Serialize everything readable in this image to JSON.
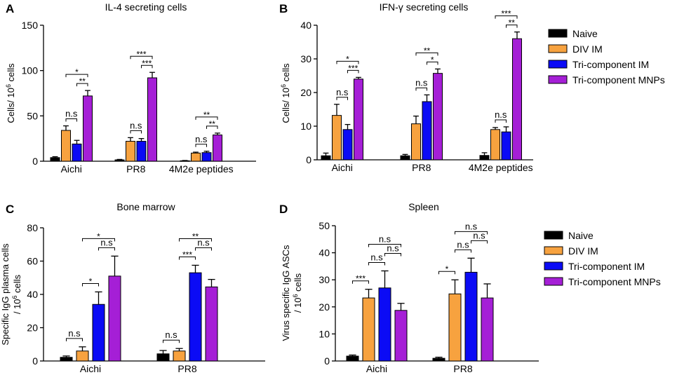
{
  "legend": {
    "items": [
      "Naive",
      "DIV IM",
      "Tri-component IM",
      "Tri-component MNPs"
    ],
    "colors": [
      "#000000",
      "#f7a23f",
      "#0b0bf5",
      "#a51fd6"
    ]
  },
  "chart_data": [
    {
      "panel": "A",
      "type": "bar",
      "title": "IL-4 secreting cells",
      "ylabel": "Cells/ 10^6 cells",
      "ylabel_prefix": "Cells/ 10",
      "ylabel_sup": "6",
      "ylabel_suffix": " cells",
      "ylim": [
        0,
        150
      ],
      "yticks": [
        0,
        50,
        100,
        150
      ],
      "categories": [
        "Aichi",
        "PR8",
        "4M2e peptides"
      ],
      "series": [
        {
          "name": "Naive",
          "values": [
            4,
            1.5,
            0.5
          ],
          "errors": [
            1,
            0.5,
            0.3
          ]
        },
        {
          "name": "DIV IM",
          "values": [
            34,
            22,
            9
          ],
          "errors": [
            5,
            4,
            1
          ]
        },
        {
          "name": "Tri-component IM",
          "values": [
            19,
            22,
            9.5
          ],
          "errors": [
            4,
            3,
            1.5
          ]
        },
        {
          "name": "Tri-component MNPs",
          "values": [
            72,
            92,
            29
          ],
          "errors": [
            6,
            6,
            2
          ]
        }
      ],
      "annotations": [
        {
          "group": 0,
          "from": 1,
          "to": 2,
          "label": "n.s"
        },
        {
          "group": 0,
          "from": 2,
          "to": 3,
          "label": "**"
        },
        {
          "group": 0,
          "from": 1,
          "to": 3,
          "label": "*"
        },
        {
          "group": 1,
          "from": 1,
          "to": 2,
          "label": "n.s"
        },
        {
          "group": 1,
          "from": 2,
          "to": 3,
          "label": "***"
        },
        {
          "group": 1,
          "from": 1,
          "to": 3,
          "label": "***"
        },
        {
          "group": 2,
          "from": 1,
          "to": 2,
          "label": "n.s"
        },
        {
          "group": 2,
          "from": 2,
          "to": 3,
          "label": "**"
        },
        {
          "group": 2,
          "from": 1,
          "to": 3,
          "label": "**"
        }
      ]
    },
    {
      "panel": "B",
      "type": "bar",
      "title": "IFN-γ secreting cells",
      "ylabel": "Cells/ 10^6 cells",
      "ylabel_prefix": "Cells/ 10",
      "ylabel_sup": "6",
      "ylabel_suffix": " cells",
      "ylim": [
        0,
        40
      ],
      "yticks": [
        0,
        10,
        20,
        30,
        40
      ],
      "categories": [
        "Aichi",
        "PR8",
        "4M2e peptides"
      ],
      "series": [
        {
          "name": "Naive",
          "values": [
            1.2,
            1.2,
            1.3
          ],
          "errors": [
            0.8,
            0.4,
            0.8
          ]
        },
        {
          "name": "DIV IM",
          "values": [
            13.2,
            10.7,
            9
          ],
          "errors": [
            3.3,
            2.3,
            0.6
          ]
        },
        {
          "name": "Tri-component IM",
          "values": [
            9,
            17.3,
            8.3
          ],
          "errors": [
            1.5,
            2,
            1.5
          ]
        },
        {
          "name": "Tri-component MNPs",
          "values": [
            24,
            25.7,
            36
          ],
          "errors": [
            0.5,
            1.3,
            2
          ]
        }
      ],
      "annotations": [
        {
          "group": 0,
          "from": 1,
          "to": 2,
          "label": "n.s"
        },
        {
          "group": 0,
          "from": 2,
          "to": 3,
          "label": "***"
        },
        {
          "group": 0,
          "from": 1,
          "to": 3,
          "label": "*"
        },
        {
          "group": 1,
          "from": 1,
          "to": 2,
          "label": "n.s"
        },
        {
          "group": 1,
          "from": 2,
          "to": 3,
          "label": "*"
        },
        {
          "group": 1,
          "from": 1,
          "to": 3,
          "label": "**"
        },
        {
          "group": 2,
          "from": 1,
          "to": 2,
          "label": "n.s"
        },
        {
          "group": 2,
          "from": 2,
          "to": 3,
          "label": "**"
        },
        {
          "group": 2,
          "from": 1,
          "to": 3,
          "label": "***"
        }
      ]
    },
    {
      "panel": "C",
      "type": "bar",
      "title": "Bone marrow",
      "ylabel": "Specific IgG plasma cells / 10^6 cells",
      "ylabel_prefix": "/ 10",
      "ylabel_sup": "6",
      "ylabel_suffix": " cells",
      "ylabel_line1": "Specific IgG plasma cells",
      "ylim": [
        0,
        80
      ],
      "yticks": [
        0,
        20,
        40,
        60,
        80
      ],
      "categories": [
        "Aichi",
        "PR8"
      ],
      "series": [
        {
          "name": "Naive",
          "values": [
            2.2,
            4.3
          ],
          "errors": [
            0.8,
            2
          ]
        },
        {
          "name": "DIV IM",
          "values": [
            6,
            6
          ],
          "errors": [
            2.5,
            1.5
          ]
        },
        {
          "name": "Tri-component IM",
          "values": [
            34,
            53
          ],
          "errors": [
            7.5,
            4.5
          ]
        },
        {
          "name": "Tri-component MNPs",
          "values": [
            51,
            44.5
          ],
          "errors": [
            12,
            4.5
          ]
        }
      ],
      "annotations": [
        {
          "group": 0,
          "from": 0,
          "to": 1,
          "label": "n.s"
        },
        {
          "group": 0,
          "from": 1,
          "to": 2,
          "label": "*"
        },
        {
          "group": 0,
          "from": 2,
          "to": 3,
          "label": "n.s"
        },
        {
          "group": 0,
          "from": 1,
          "to": 3,
          "label": "*"
        },
        {
          "group": 1,
          "from": 0,
          "to": 1,
          "label": "n.s"
        },
        {
          "group": 1,
          "from": 1,
          "to": 2,
          "label": "***"
        },
        {
          "group": 1,
          "from": 2,
          "to": 3,
          "label": "n.s"
        },
        {
          "group": 1,
          "from": 1,
          "to": 3,
          "label": "**"
        }
      ]
    },
    {
      "panel": "D",
      "type": "bar",
      "title": "Spleen",
      "ylabel": "Virus specific IgG ASCs / 10^6 cells",
      "ylabel_prefix": "/ 10",
      "ylabel_sup": "6",
      "ylabel_suffix": " cells",
      "ylabel_line1": "Virus specific IgG ASCs",
      "ylim": [
        0,
        50
      ],
      "yticks": [
        0,
        10,
        20,
        30,
        40,
        50
      ],
      "categories": [
        "Aichi",
        "PR8"
      ],
      "series": [
        {
          "name": "Naive",
          "values": [
            1.8,
            1
          ],
          "errors": [
            0.4,
            0.4
          ]
        },
        {
          "name": "DIV IM",
          "values": [
            23.3,
            24.8
          ],
          "errors": [
            3.2,
            5.2
          ]
        },
        {
          "name": "Tri-component IM",
          "values": [
            27,
            32.8
          ],
          "errors": [
            6.3,
            5.2
          ]
        },
        {
          "name": "Tri-component MNPs",
          "values": [
            18.7,
            23.3
          ],
          "errors": [
            2.6,
            5.2
          ]
        }
      ],
      "annotations": [
        {
          "group": 0,
          "from": 0,
          "to": 1,
          "label": "***"
        },
        {
          "group": 0,
          "from": 1,
          "to": 2,
          "label": "n.s"
        },
        {
          "group": 0,
          "from": 2,
          "to": 3,
          "label": "n.s"
        },
        {
          "group": 0,
          "from": 1,
          "to": 3,
          "label": "n.s"
        },
        {
          "group": 1,
          "from": 0,
          "to": 1,
          "label": "*"
        },
        {
          "group": 1,
          "from": 1,
          "to": 2,
          "label": "n.s"
        },
        {
          "group": 1,
          "from": 2,
          "to": 3,
          "label": "n.s"
        },
        {
          "group": 1,
          "from": 1,
          "to": 3,
          "label": "n.s"
        }
      ]
    }
  ]
}
